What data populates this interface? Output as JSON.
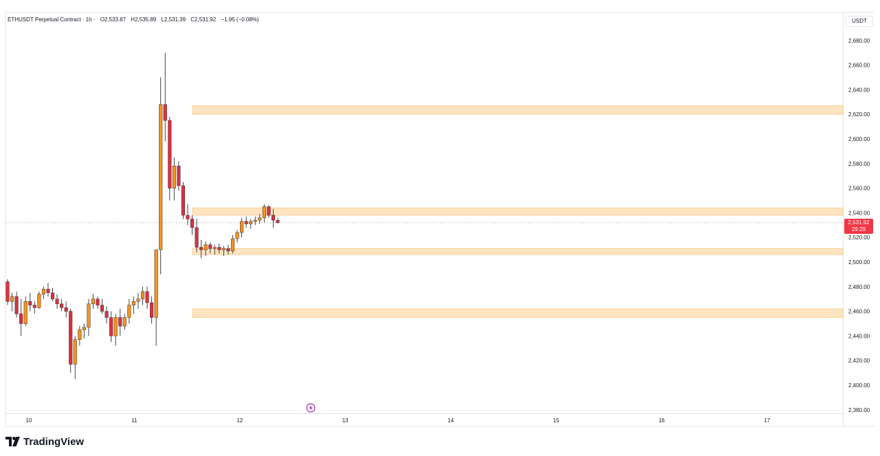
{
  "legend": {
    "symbol": "ETHUSDT Perpetual Contract · 1h ·",
    "open": "O2,533.87",
    "high": "H2,535.89",
    "low": "L2,531.39",
    "close": "C2,531.92",
    "change": "−1.95 (−0.08%)"
  },
  "currency": "USDT",
  "last_price": {
    "price": "2,531.92",
    "countdown": "29:29"
  },
  "brand": "TradingView",
  "colors": {
    "up": "#f7931a",
    "down": "#e0303e",
    "zone": "#fde4c0",
    "zone_border": "#f9c98a"
  },
  "chart_data": {
    "type": "candlestick",
    "interval": "1h",
    "ylim": [
      2375,
      2690
    ],
    "y_ticks": [
      2380,
      2400,
      2420,
      2440,
      2460,
      2480,
      2500,
      2520,
      2540,
      2560,
      2580,
      2600,
      2620,
      2640,
      2660,
      2680
    ],
    "x_ticks": [
      {
        "label": "10",
        "t": 10
      },
      {
        "label": "11",
        "t": 11
      },
      {
        "label": "12",
        "t": 12
      },
      {
        "label": "13",
        "t": 13
      },
      {
        "label": "14",
        "t": 14
      },
      {
        "label": "15",
        "t": 15
      },
      {
        "label": "16",
        "t": 16
      },
      {
        "label": "17",
        "t": 17
      }
    ],
    "zones": [
      {
        "low": 2620,
        "high": 2627
      },
      {
        "low": 2538,
        "high": 2544
      },
      {
        "low": 2506,
        "high": 2511
      },
      {
        "low": 2455,
        "high": 2462
      }
    ],
    "current_price": 2531.92,
    "candles": [
      [
        2484,
        2486,
        2465,
        2468
      ],
      [
        2468,
        2475,
        2460,
        2472
      ],
      [
        2472,
        2476,
        2455,
        2458
      ],
      [
        2458,
        2470,
        2440,
        2450
      ],
      [
        2450,
        2472,
        2448,
        2468
      ],
      [
        2468,
        2475,
        2460,
        2465
      ],
      [
        2465,
        2468,
        2458,
        2463
      ],
      [
        2463,
        2476,
        2462,
        2474
      ],
      [
        2474,
        2480,
        2470,
        2478
      ],
      [
        2478,
        2483,
        2472,
        2475
      ],
      [
        2475,
        2479,
        2468,
        2470
      ],
      [
        2470,
        2474,
        2462,
        2466
      ],
      [
        2466,
        2470,
        2460,
        2463
      ],
      [
        2463,
        2468,
        2455,
        2460
      ],
      [
        2460,
        2462,
        2410,
        2417
      ],
      [
        2417,
        2440,
        2405,
        2437
      ],
      [
        2437,
        2448,
        2432,
        2445
      ],
      [
        2445,
        2450,
        2438,
        2447
      ],
      [
        2447,
        2470,
        2440,
        2466
      ],
      [
        2466,
        2474,
        2462,
        2470
      ],
      [
        2470,
        2472,
        2462,
        2465
      ],
      [
        2465,
        2470,
        2458,
        2460
      ],
      [
        2460,
        2464,
        2450,
        2455
      ],
      [
        2455,
        2460,
        2435,
        2440
      ],
      [
        2440,
        2458,
        2432,
        2455
      ],
      [
        2455,
        2462,
        2440,
        2448
      ],
      [
        2448,
        2458,
        2445,
        2455
      ],
      [
        2455,
        2470,
        2450,
        2465
      ],
      [
        2465,
        2472,
        2458,
        2468
      ],
      [
        2468,
        2475,
        2462,
        2470
      ],
      [
        2470,
        2480,
        2465,
        2476
      ],
      [
        2476,
        2480,
        2462,
        2467
      ],
      [
        2467,
        2472,
        2450,
        2455
      ],
      [
        2455,
        2510,
        2432,
        2510
      ],
      [
        2510,
        2650,
        2490,
        2628
      ],
      [
        2628,
        2670,
        2598,
        2615
      ],
      [
        2615,
        2618,
        2550,
        2560
      ],
      [
        2560,
        2585,
        2550,
        2578
      ],
      [
        2578,
        2582,
        2558,
        2562
      ],
      [
        2562,
        2565,
        2535,
        2538
      ],
      [
        2538,
        2547,
        2530,
        2535
      ],
      [
        2535,
        2538,
        2522,
        2528
      ],
      [
        2528,
        2535,
        2508,
        2512
      ],
      [
        2512,
        2518,
        2503,
        2510
      ],
      [
        2510,
        2517,
        2505,
        2514
      ],
      [
        2514,
        2516,
        2507,
        2511
      ],
      [
        2511,
        2514,
        2506,
        2512
      ],
      [
        2512,
        2515,
        2507,
        2510
      ],
      [
        2510,
        2513,
        2505,
        2511
      ],
      [
        2511,
        2514,
        2506,
        2509
      ],
      [
        2509,
        2522,
        2507,
        2519
      ],
      [
        2519,
        2526,
        2516,
        2524
      ],
      [
        2524,
        2536,
        2520,
        2533
      ],
      [
        2533,
        2537,
        2528,
        2531
      ],
      [
        2531,
        2535,
        2527,
        2533
      ],
      [
        2533,
        2537,
        2530,
        2534
      ],
      [
        2534,
        2539,
        2531,
        2536
      ],
      [
        2536,
        2547,
        2532,
        2545
      ],
      [
        2545,
        2546,
        2536,
        2538
      ],
      [
        2538,
        2543,
        2528,
        2534
      ],
      [
        2533.87,
        2535.89,
        2531.39,
        2531.92
      ]
    ]
  }
}
